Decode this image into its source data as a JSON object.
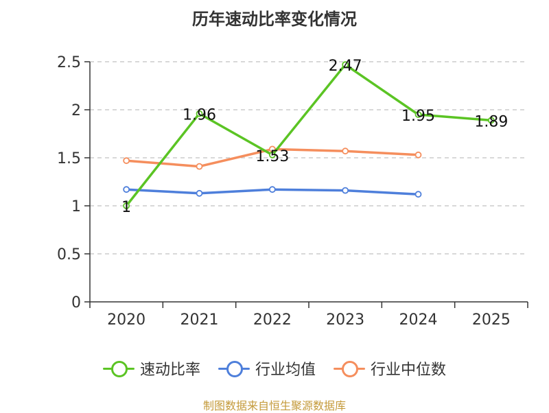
{
  "title": "历年速动比率变化情况",
  "source": "制图数据来自恒生聚源数据库",
  "chart_data": {
    "type": "line",
    "title": "历年速动比率变化情况",
    "categories": [
      "2020",
      "2021",
      "2022",
      "2023",
      "2024",
      "2025"
    ],
    "ylim": [
      0,
      2.5
    ],
    "yticks": [
      "0",
      "0.5",
      "1",
      "1.5",
      "2",
      "2.5"
    ],
    "grid": true,
    "legend_position": "bottom",
    "series": [
      {
        "name": "速动比率",
        "color": "#5bc424",
        "values": [
          1,
          1.96,
          1.53,
          2.47,
          1.95,
          1.89
        ],
        "labels": [
          "1",
          "1.96",
          "1.53",
          "2.47",
          "1.95",
          "1.89"
        ]
      },
      {
        "name": "行业均值",
        "color": "#4e7fdb",
        "values": [
          1.17,
          1.13,
          1.17,
          1.16,
          1.12,
          null
        ]
      },
      {
        "name": "行业中位数",
        "color": "#f58e5d",
        "values": [
          1.47,
          1.41,
          1.59,
          1.57,
          1.53,
          null
        ]
      }
    ]
  }
}
